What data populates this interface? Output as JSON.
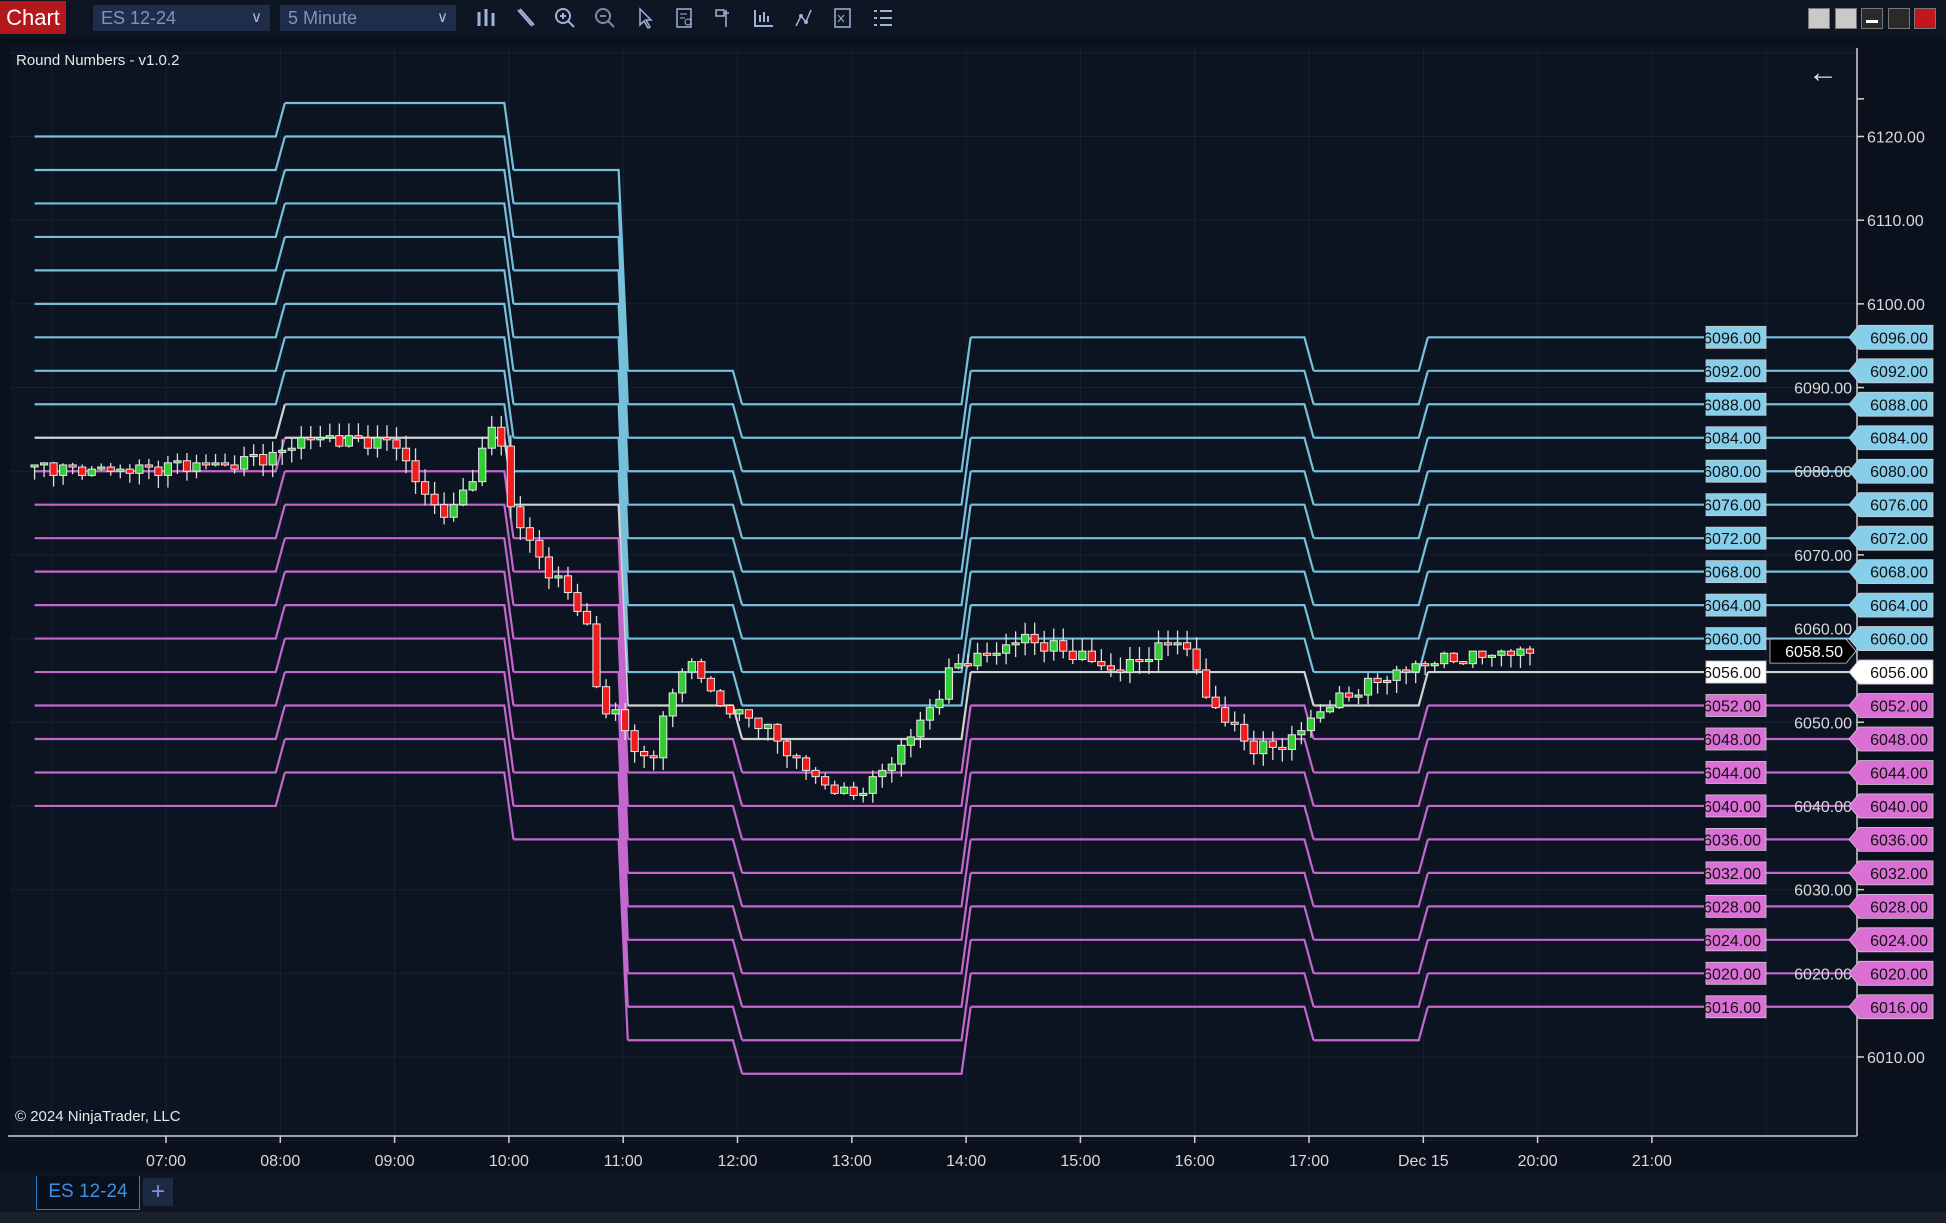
{
  "toolbar": {
    "chart_label": "Chart",
    "instrument": "ES 12-24",
    "interval": "5 Minute",
    "icons": [
      "bar-type-icon",
      "drawing-tool-icon",
      "zoom-in-icon",
      "zoom-out-icon",
      "pointer-icon",
      "data-box-icon",
      "chart-trader-icon",
      "indicators-icon",
      "strategies-icon",
      "templates-icon",
      "properties-icon"
    ],
    "window_buttons": [
      "restore-icon",
      "tile-icon",
      "minimize-icon",
      "maximize-icon",
      "close-icon"
    ]
  },
  "chart": {
    "indicator_title": "Round Numbers - v1.0.2",
    "copyright": "© 2024 NinjaTrader, LLC",
    "back_arrow": "←",
    "time_labels": [
      {
        "label": "07:00",
        "hour": 7
      },
      {
        "label": "08:00",
        "hour": 8
      },
      {
        "label": "09:00",
        "hour": 9
      },
      {
        "label": "10:00",
        "hour": 10
      },
      {
        "label": "11:00",
        "hour": 11
      },
      {
        "label": "12:00",
        "hour": 12
      },
      {
        "label": "13:00",
        "hour": 13
      },
      {
        "label": "14:00",
        "hour": 14
      },
      {
        "label": "15:00",
        "hour": 15
      },
      {
        "label": "16:00",
        "hour": 16
      },
      {
        "label": "17:00",
        "hour": 17
      },
      {
        "label": "Dec 15",
        "hour": 18
      },
      {
        "label": "20:00",
        "hour": 19
      },
      {
        "label": "21:00",
        "hour": 20
      }
    ],
    "price_ticks": [
      "6120.00",
      "6110.00",
      "6100.00",
      "6090.00",
      "6080.00",
      "6070.00",
      "6060.00",
      "6050.00",
      "6040.00",
      "6030.00",
      "6020.00",
      "6010.00"
    ],
    "current_price": "6058.50",
    "level_step": 4,
    "round_level_segments": [
      {
        "from": 5.85,
        "to": 8,
        "top": 6120,
        "bottom": 6040,
        "neutral": 6084
      },
      {
        "from": 8,
        "to": 10,
        "top": 6124,
        "bottom": 6044,
        "neutral": 6084
      },
      {
        "from": 10,
        "to": 11,
        "top": 6116,
        "bottom": 6036,
        "neutral": 6076
      },
      {
        "from": 11,
        "to": 12,
        "top": 6092,
        "bottom": 6012,
        "neutral": 6052
      },
      {
        "from": 12,
        "to": 14,
        "top": 6088,
        "bottom": 6008,
        "neutral": 6048
      },
      {
        "from": 14,
        "to": 17,
        "top": 6096,
        "bottom": 6016,
        "neutral": 6056
      },
      {
        "from": 17,
        "to": 18,
        "top": 6092,
        "bottom": 6012,
        "neutral": 6052
      },
      {
        "from": 18,
        "to": 21.3,
        "top": 6096,
        "bottom": 6016,
        "neutral": 6056
      }
    ],
    "level_labels": [
      "6096.00",
      "6092.00",
      "6088.00",
      "6084.00",
      "6080.00",
      "6076.00",
      "6072.00",
      "6068.00",
      "6064.00",
      "6060.00",
      "6056.00",
      "6052.00",
      "6048.00",
      "6044.00",
      "6040.00",
      "6036.00",
      "6032.00",
      "6028.00",
      "6024.00",
      "6020.00",
      "6016.00"
    ],
    "price_path": [
      [
        5.85,
        6080.5
      ],
      [
        6.5,
        6080
      ],
      [
        7,
        6080.5
      ],
      [
        7.6,
        6081
      ],
      [
        8,
        6082
      ],
      [
        8.2,
        6084
      ],
      [
        9,
        6083.5
      ],
      [
        9.1,
        6081
      ],
      [
        9.3,
        6076
      ],
      [
        9.5,
        6075
      ],
      [
        9.7,
        6080
      ],
      [
        9.85,
        6085
      ],
      [
        9.95,
        6083
      ],
      [
        10.0,
        6076
      ],
      [
        10.2,
        6071
      ],
      [
        10.4,
        6067
      ],
      [
        10.6,
        6064
      ],
      [
        10.72,
        6060
      ],
      [
        10.8,
        6050
      ],
      [
        10.9,
        6052
      ],
      [
        11.0,
        6050
      ],
      [
        11.1,
        6046
      ],
      [
        11.25,
        6046
      ],
      [
        11.4,
        6052
      ],
      [
        11.55,
        6058
      ],
      [
        11.7,
        6055
      ],
      [
        11.85,
        6052
      ],
      [
        12.0,
        6051
      ],
      [
        12.2,
        6050
      ],
      [
        12.4,
        6047
      ],
      [
        12.7,
        6043
      ],
      [
        13.0,
        6041
      ],
      [
        13.2,
        6043
      ],
      [
        13.5,
        6048
      ],
      [
        13.75,
        6053
      ],
      [
        13.9,
        6057
      ],
      [
        14.2,
        6058
      ],
      [
        14.5,
        6060
      ],
      [
        15.0,
        6058
      ],
      [
        15.3,
        6056
      ],
      [
        15.6,
        6058
      ],
      [
        15.85,
        6060
      ],
      [
        16.0,
        6057
      ],
      [
        16.1,
        6053
      ],
      [
        16.5,
        6047
      ],
      [
        16.75,
        6047
      ],
      [
        17.0,
        6050
      ],
      [
        17.05,
        6051
      ],
      [
        17.3,
        6053
      ],
      [
        17.6,
        6055
      ],
      [
        18.0,
        6057
      ],
      [
        18.5,
        6058
      ],
      [
        19.0,
        6058.5
      ]
    ],
    "colors": {
      "background": "#0d1421",
      "above": "#76c0dc",
      "below": "#c467cf",
      "neutral": "#d2d2d2",
      "label_above": "#87ceeb",
      "label_below": "#da70d6",
      "up_candle": "#32cd32",
      "down_candle": "#ee1c1c"
    }
  },
  "tabs": {
    "active": "ES 12-24",
    "add": "+"
  }
}
